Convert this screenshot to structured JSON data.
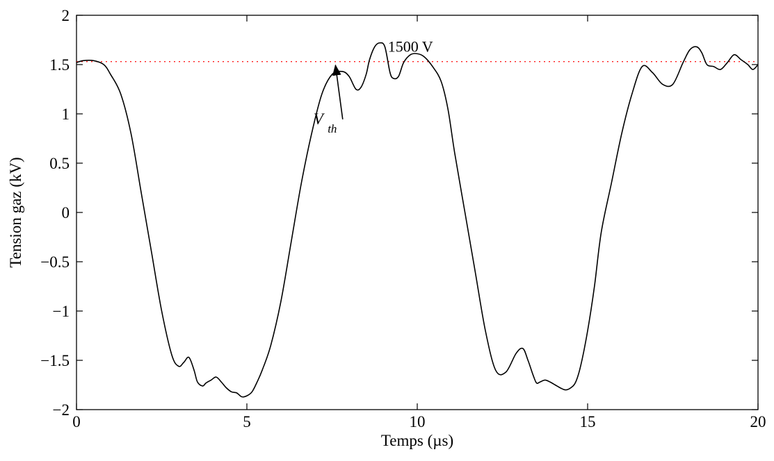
{
  "chart_data": {
    "type": "line",
    "xlabel": "Temps (µs)",
    "ylabel": "Tension gaz (kV)",
    "xlim": [
      0,
      20
    ],
    "ylim": [
      -2,
      2
    ],
    "xticks": [
      "0",
      "5",
      "10",
      "15",
      "20"
    ],
    "yticks": [
      "−2",
      "−1.5",
      "−1",
      "−0.5",
      "0",
      "0.5",
      "1",
      "1.5",
      "2"
    ],
    "grid": false,
    "threshold": {
      "y": 1.53,
      "label": "1500 V",
      "color": "#ff0000",
      "style": "dotted"
    },
    "annotation": {
      "text": "V",
      "subscript": "th",
      "from": [
        7.2,
        1.05
      ],
      "to": [
        7.6,
        1.52
      ]
    },
    "series": [
      {
        "color": "#000000",
        "x": [
          0,
          0.2,
          0.5,
          0.8,
          1.0,
          1.3,
          1.6,
          1.9,
          2.2,
          2.5,
          2.8,
          3.0,
          3.15,
          3.3,
          3.45,
          3.55,
          3.7,
          3.8,
          3.95,
          4.1,
          4.25,
          4.4,
          4.55,
          4.7,
          4.85,
          5.0,
          5.15,
          5.3,
          5.45,
          5.7,
          6.0,
          6.3,
          6.6,
          6.9,
          7.2,
          7.5,
          7.8,
          8.0,
          8.2,
          8.35,
          8.5,
          8.6,
          8.75,
          8.9,
          9.05,
          9.2,
          9.3,
          9.45,
          9.6,
          9.8,
          10.0,
          10.2,
          10.45,
          10.7,
          10.9,
          11.1,
          11.4,
          11.7,
          12.0,
          12.3,
          12.6,
          12.9,
          13.1,
          13.25,
          13.4,
          13.5,
          13.6,
          13.75,
          13.9,
          14.05,
          14.2,
          14.35,
          14.5,
          14.65,
          14.8,
          15.0,
          15.2,
          15.4,
          15.7,
          16.0,
          16.3,
          16.6,
          16.9,
          17.2,
          17.5,
          17.8,
          18.0,
          18.2,
          18.35,
          18.5,
          18.7,
          18.9,
          19.1,
          19.3,
          19.5,
          19.7,
          19.85,
          20.0
        ],
        "y": [
          1.52,
          1.54,
          1.54,
          1.5,
          1.4,
          1.2,
          0.8,
          0.2,
          -0.4,
          -1.0,
          -1.45,
          -1.56,
          -1.52,
          -1.47,
          -1.6,
          -1.72,
          -1.76,
          -1.73,
          -1.7,
          -1.67,
          -1.72,
          -1.78,
          -1.82,
          -1.83,
          -1.87,
          -1.86,
          -1.82,
          -1.72,
          -1.6,
          -1.35,
          -0.9,
          -0.3,
          0.3,
          0.8,
          1.2,
          1.4,
          1.43,
          1.38,
          1.25,
          1.27,
          1.4,
          1.55,
          1.68,
          1.72,
          1.68,
          1.42,
          1.36,
          1.38,
          1.52,
          1.6,
          1.61,
          1.58,
          1.48,
          1.33,
          1.05,
          0.6,
          0.0,
          -0.6,
          -1.2,
          -1.6,
          -1.62,
          -1.43,
          -1.38,
          -1.5,
          -1.65,
          -1.73,
          -1.72,
          -1.7,
          -1.72,
          -1.75,
          -1.78,
          -1.8,
          -1.78,
          -1.72,
          -1.55,
          -1.2,
          -0.75,
          -0.2,
          0.3,
          0.8,
          1.2,
          1.48,
          1.42,
          1.3,
          1.3,
          1.52,
          1.65,
          1.68,
          1.62,
          1.5,
          1.48,
          1.45,
          1.52,
          1.6,
          1.55,
          1.5,
          1.45,
          1.5
        ]
      }
    ]
  }
}
